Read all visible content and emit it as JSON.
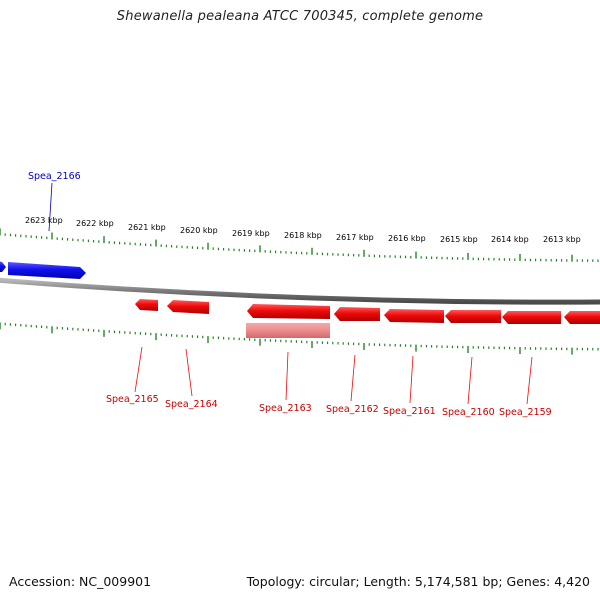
{
  "title": "Shewanella pealeana ATCC 700345, complete genome",
  "footer": {
    "accession": "Accession: NC_009901",
    "summary": "Topology: circular; Length: 5,174,581 bp; Genes: 4,420"
  },
  "colors": {
    "forward_gene": "#1010ee",
    "reverse_gene": "#ee0a0a",
    "reverse_gene_faded": "#ec8c8c",
    "tick": "#1a7a1a",
    "backbone": "#7a7a7a"
  },
  "ticks": {
    "unit": "kbp",
    "labels": [
      "2623 kbp",
      "2622 kbp",
      "2621 kbp",
      "2620 kbp",
      "2619 kbp",
      "2618 kbp",
      "2617 kbp",
      "2616 kbp",
      "2615 kbp",
      "2614 kbp",
      "2613 kbp"
    ]
  },
  "genes": {
    "forward": [
      {
        "label": "Spea_2166",
        "label_color": "#0000cc"
      }
    ],
    "reverse": [
      {
        "label": "Spea_2165"
      },
      {
        "label": "Spea_2164"
      },
      {
        "label": "Spea_2163"
      },
      {
        "label": "Spea_2162"
      },
      {
        "label": "Spea_2161"
      },
      {
        "label": "Spea_2160"
      },
      {
        "label": "Spea_2159"
      }
    ]
  }
}
